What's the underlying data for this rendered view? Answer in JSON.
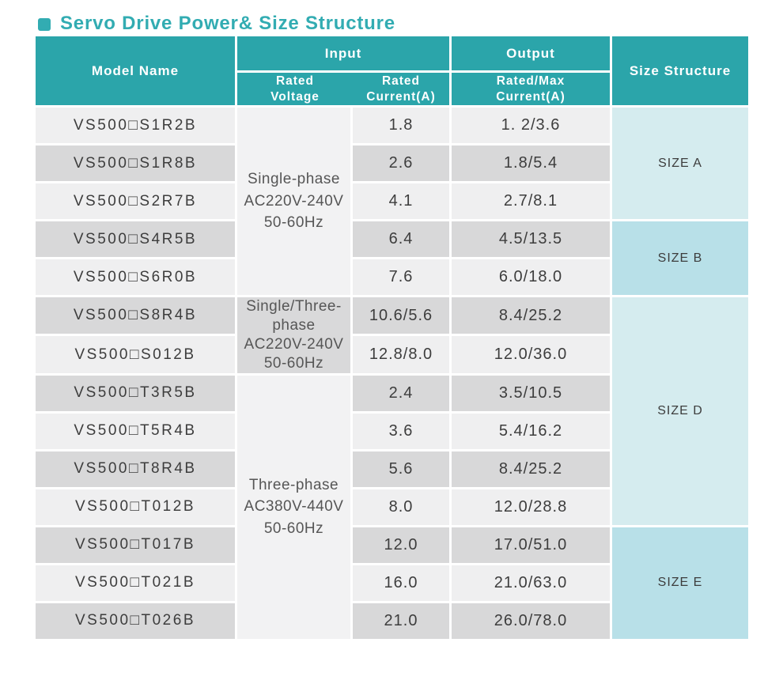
{
  "page": {
    "title": "Servo Drive Power& Size Structure"
  },
  "colors": {
    "accent": "#32acb2",
    "header_teal": "#2ba5aa",
    "row_light": "#efeff0",
    "row_dark": "#d8d8d9",
    "voltage_light": "#f2f2f3",
    "voltage_dark": "#d9d9da",
    "size_light": "#d5ecef",
    "size_dark": "#b8e0e8",
    "text_dark": "#3d3d3d"
  },
  "table": {
    "header": {
      "model": "Model Name",
      "input": "Input",
      "output": "Output",
      "size": "Size Structure",
      "rated_voltage": "Rated\nVoltage",
      "rated_current": "Rated\nCurrent(A)",
      "rated_max_current": "Rated/Max\nCurrent(A)"
    },
    "voltage_groups": [
      {
        "label": "Single-phase\nAC220V-240V\n50-60Hz",
        "rows": "1-5"
      },
      {
        "label": "Single/Three-\nphase\nAC220V-240V\n50-60Hz",
        "rows": "6-7"
      },
      {
        "label": "Three-phase\nAC380V-440V\n50-60Hz",
        "rows": "8-14"
      }
    ],
    "size_groups": [
      {
        "label": "SIZE A",
        "rows": "1-3"
      },
      {
        "label": "SIZE B",
        "rows": "4-5"
      },
      {
        "label": "SIZE D",
        "rows": "6-11"
      },
      {
        "label": "SIZE E",
        "rows": "12-14"
      }
    ],
    "rows": [
      {
        "model": "VS500□S1R2B",
        "rated_current": "1.8",
        "output_current": "1. 2/3.6"
      },
      {
        "model": "VS500□S1R8B",
        "rated_current": "2.6",
        "output_current": "1.8/5.4"
      },
      {
        "model": "VS500□S2R7B",
        "rated_current": "4.1",
        "output_current": "2.7/8.1"
      },
      {
        "model": "VS500□S4R5B",
        "rated_current": "6.4",
        "output_current": "4.5/13.5"
      },
      {
        "model": "VS500□S6R0B",
        "rated_current": "7.6",
        "output_current": "6.0/18.0"
      },
      {
        "model": "VS500□S8R4B",
        "rated_current": "10.6/5.6",
        "output_current": "8.4/25.2"
      },
      {
        "model": "VS500□S012B",
        "rated_current": "12.8/8.0",
        "output_current": "12.0/36.0"
      },
      {
        "model": "VS500□T3R5B",
        "rated_current": "2.4",
        "output_current": "3.5/10.5"
      },
      {
        "model": "VS500□T5R4B",
        "rated_current": "3.6",
        "output_current": "5.4/16.2"
      },
      {
        "model": "VS500□T8R4B",
        "rated_current": "5.6",
        "output_current": "8.4/25.2"
      },
      {
        "model": "VS500□T012B",
        "rated_current": "8.0",
        "output_current": "12.0/28.8"
      },
      {
        "model": "VS500□T017B",
        "rated_current": "12.0",
        "output_current": "17.0/51.0"
      },
      {
        "model": "VS500□T021B",
        "rated_current": "16.0",
        "output_current": "21.0/63.0"
      },
      {
        "model": "VS500□T026B",
        "rated_current": "21.0",
        "output_current": "26.0/78.0"
      }
    ]
  }
}
